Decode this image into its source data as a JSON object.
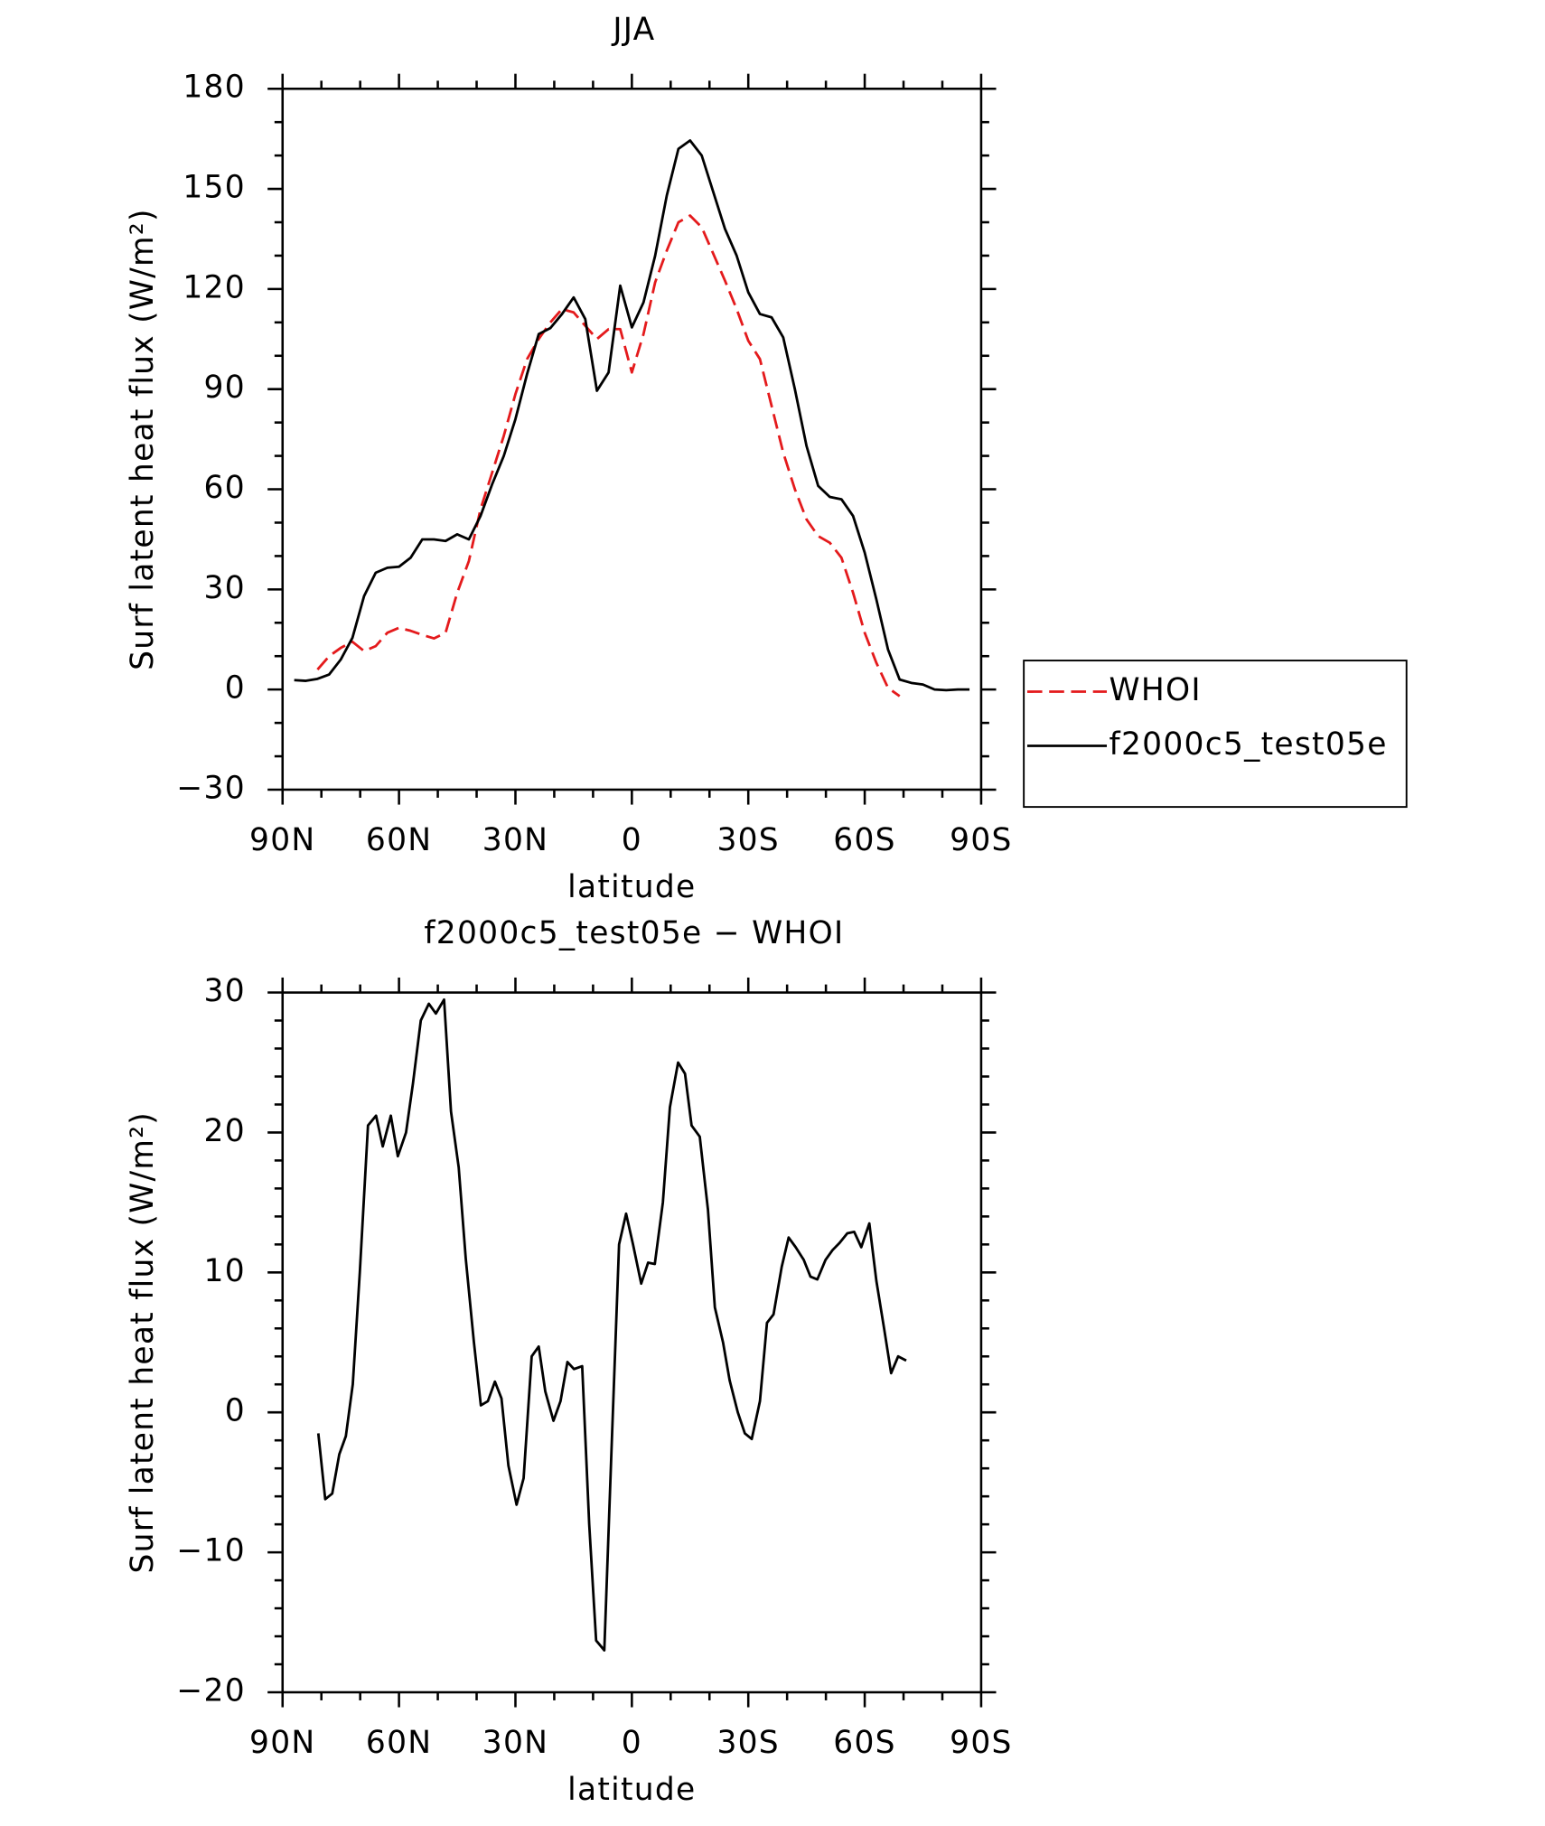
{
  "chart_data": [
    {
      "type": "line",
      "title": "JJA",
      "xlabel": "latitude",
      "ylabel": "Surf latent heat flux (W/m²)",
      "xlim": [
        90,
        -90
      ],
      "xticks": [
        {
          "value": 90,
          "label": "90N"
        },
        {
          "value": 60,
          "label": "60N"
        },
        {
          "value": 30,
          "label": "30N"
        },
        0,
        {
          "value": -30,
          "label": "30S"
        },
        {
          "value": -60,
          "label": "60S"
        },
        {
          "value": -90,
          "label": "90S"
        }
      ],
      "ylim": [
        -30,
        180
      ],
      "yticks": [
        {
          "value": -30,
          "label": "−30"
        },
        0,
        30,
        60,
        90,
        120,
        150,
        180
      ],
      "legend": "right",
      "x": [
        87,
        84,
        81,
        78,
        75,
        72,
        69,
        66,
        63,
        60,
        57,
        54,
        51,
        48,
        45,
        42,
        39,
        36,
        33,
        30,
        27,
        24,
        21,
        18,
        15,
        12,
        9,
        6,
        3,
        0,
        -3,
        -6,
        -9,
        -12,
        -15,
        -18,
        -21,
        -24,
        -27,
        -30,
        -33,
        -36,
        -39,
        -42,
        -45,
        -48,
        -51,
        -54,
        -57,
        -60,
        -63,
        -66,
        -69,
        -72,
        -75,
        -78,
        -81,
        -84,
        -87
      ],
      "series": [
        {
          "name": "WHOI",
          "color": "#e41a1c",
          "linestyle": "dashed",
          "values": [
            null,
            null,
            6,
            10,
            12.5,
            14.3,
            11.5,
            13,
            17,
            18.5,
            17.6,
            16.4,
            15.3,
            17,
            29,
            38.5,
            54,
            65,
            76,
            88.5,
            99,
            105,
            110,
            114,
            113,
            109,
            105,
            108,
            108,
            95,
            106.5,
            122,
            131.5,
            140,
            142,
            138.5,
            130.5,
            122.5,
            114,
            104.5,
            99,
            85,
            71,
            60,
            51,
            46,
            44,
            39.5,
            29,
            17,
            8,
            0.5,
            -2,
            null,
            null,
            null,
            null,
            null,
            null
          ]
        },
        {
          "name": "f2000c5_test05e",
          "color": "#000000",
          "linestyle": "solid",
          "values": [
            2.8,
            2.6,
            3.2,
            4.5,
            9,
            15.5,
            28,
            35,
            36.5,
            36.8,
            39.5,
            45,
            45,
            44.5,
            46.5,
            45,
            52,
            61.5,
            70,
            81,
            94.5,
            106.5,
            108.3,
            112.5,
            117.5,
            111,
            89.5,
            95,
            121,
            108.5,
            116,
            130,
            148,
            162,
            164.5,
            160,
            149,
            138,
            130,
            119,
            112.5,
            111.5,
            105.5,
            90,
            73,
            61,
            57.7,
            57,
            52,
            41,
            27,
            12,
            3,
            2,
            1.5,
            0,
            -0.2,
            0,
            0
          ]
        }
      ]
    },
    {
      "type": "line",
      "title": "f2000c5_test05e − WHOI",
      "xlabel": "latitude",
      "ylabel": "Surf latent heat flux (W/m²)",
      "xlim": [
        90,
        -90
      ],
      "xticks": [
        {
          "value": 90,
          "label": "90N"
        },
        {
          "value": 60,
          "label": "60N"
        },
        {
          "value": 30,
          "label": "30N"
        },
        0,
        {
          "value": -30,
          "label": "30S"
        },
        {
          "value": -60,
          "label": "60S"
        },
        {
          "value": -90,
          "label": "90S"
        }
      ],
      "ylim": [
        -20,
        30
      ],
      "yticks": [
        {
          "value": -20,
          "label": "−20"
        },
        {
          "value": -10,
          "label": "−10"
        },
        0,
        10,
        20,
        30
      ],
      "color": "#000000",
      "x": [
        80.8,
        79.0,
        77.2,
        75.4,
        73.7,
        71.9,
        70.1,
        68.0,
        65.9,
        64.2,
        62.1,
        60.3,
        58.2,
        56.4,
        54.4,
        52.3,
        50.5,
        48.4,
        46.6,
        44.6,
        42.8,
        40.7,
        38.9,
        37.1,
        35.3,
        33.6,
        31.8,
        29.7,
        27.9,
        25.8,
        24.0,
        22.3,
        20.2,
        18.4,
        16.6,
        14.9,
        12.8,
        11.0,
        9.2,
        7.1,
        5.3,
        3.3,
        1.5,
        -0.3,
        -2.4,
        -4.2,
        -5.9,
        -8.0,
        -9.8,
        -11.9,
        -13.7,
        -15.4,
        -17.5,
        -19.6,
        -21.4,
        -23.5,
        -25.2,
        -27.3,
        -29.1,
        -30.9,
        -33.0,
        -34.8,
        -36.5,
        -38.6,
        -40.4,
        -42.2,
        -44.3,
        -46.0,
        -47.8,
        -49.9,
        -51.7,
        -53.5,
        -55.5,
        -57.3,
        -59.1,
        -61.2,
        -63.0,
        -65.0,
        -66.8,
        -68.6,
        -70.7
      ],
      "values": [
        -1.5,
        -6.2,
        -5.8,
        -3,
        -1.7,
        2,
        10,
        20.5,
        21.2,
        19,
        21.2,
        18.3,
        20,
        23.5,
        28,
        29.2,
        28.5,
        29.5,
        21.5,
        17.5,
        11,
        5,
        0.5,
        0.8,
        2.2,
        1,
        -3.8,
        -6.6,
        -4.7,
        4,
        4.7,
        1.5,
        -0.6,
        0.8,
        3.6,
        3.1,
        3.3,
        -8,
        -16.3,
        -17,
        -3,
        12,
        14.2,
        12,
        9.2,
        10.7,
        10.6,
        15,
        21.8,
        25,
        24.2,
        20.5,
        19.7,
        14.5,
        7.5,
        5,
        2.3,
        0,
        -1.5,
        -1.9,
        0.8,
        6.4,
        7,
        10.4,
        12.5,
        11.8,
        10.9,
        9.7,
        9.5,
        10.9,
        11.6,
        12.1,
        12.8,
        12.9,
        11.8,
        13.5,
        9.4,
        6,
        2.8,
        4,
        3.7
      ]
    }
  ]
}
